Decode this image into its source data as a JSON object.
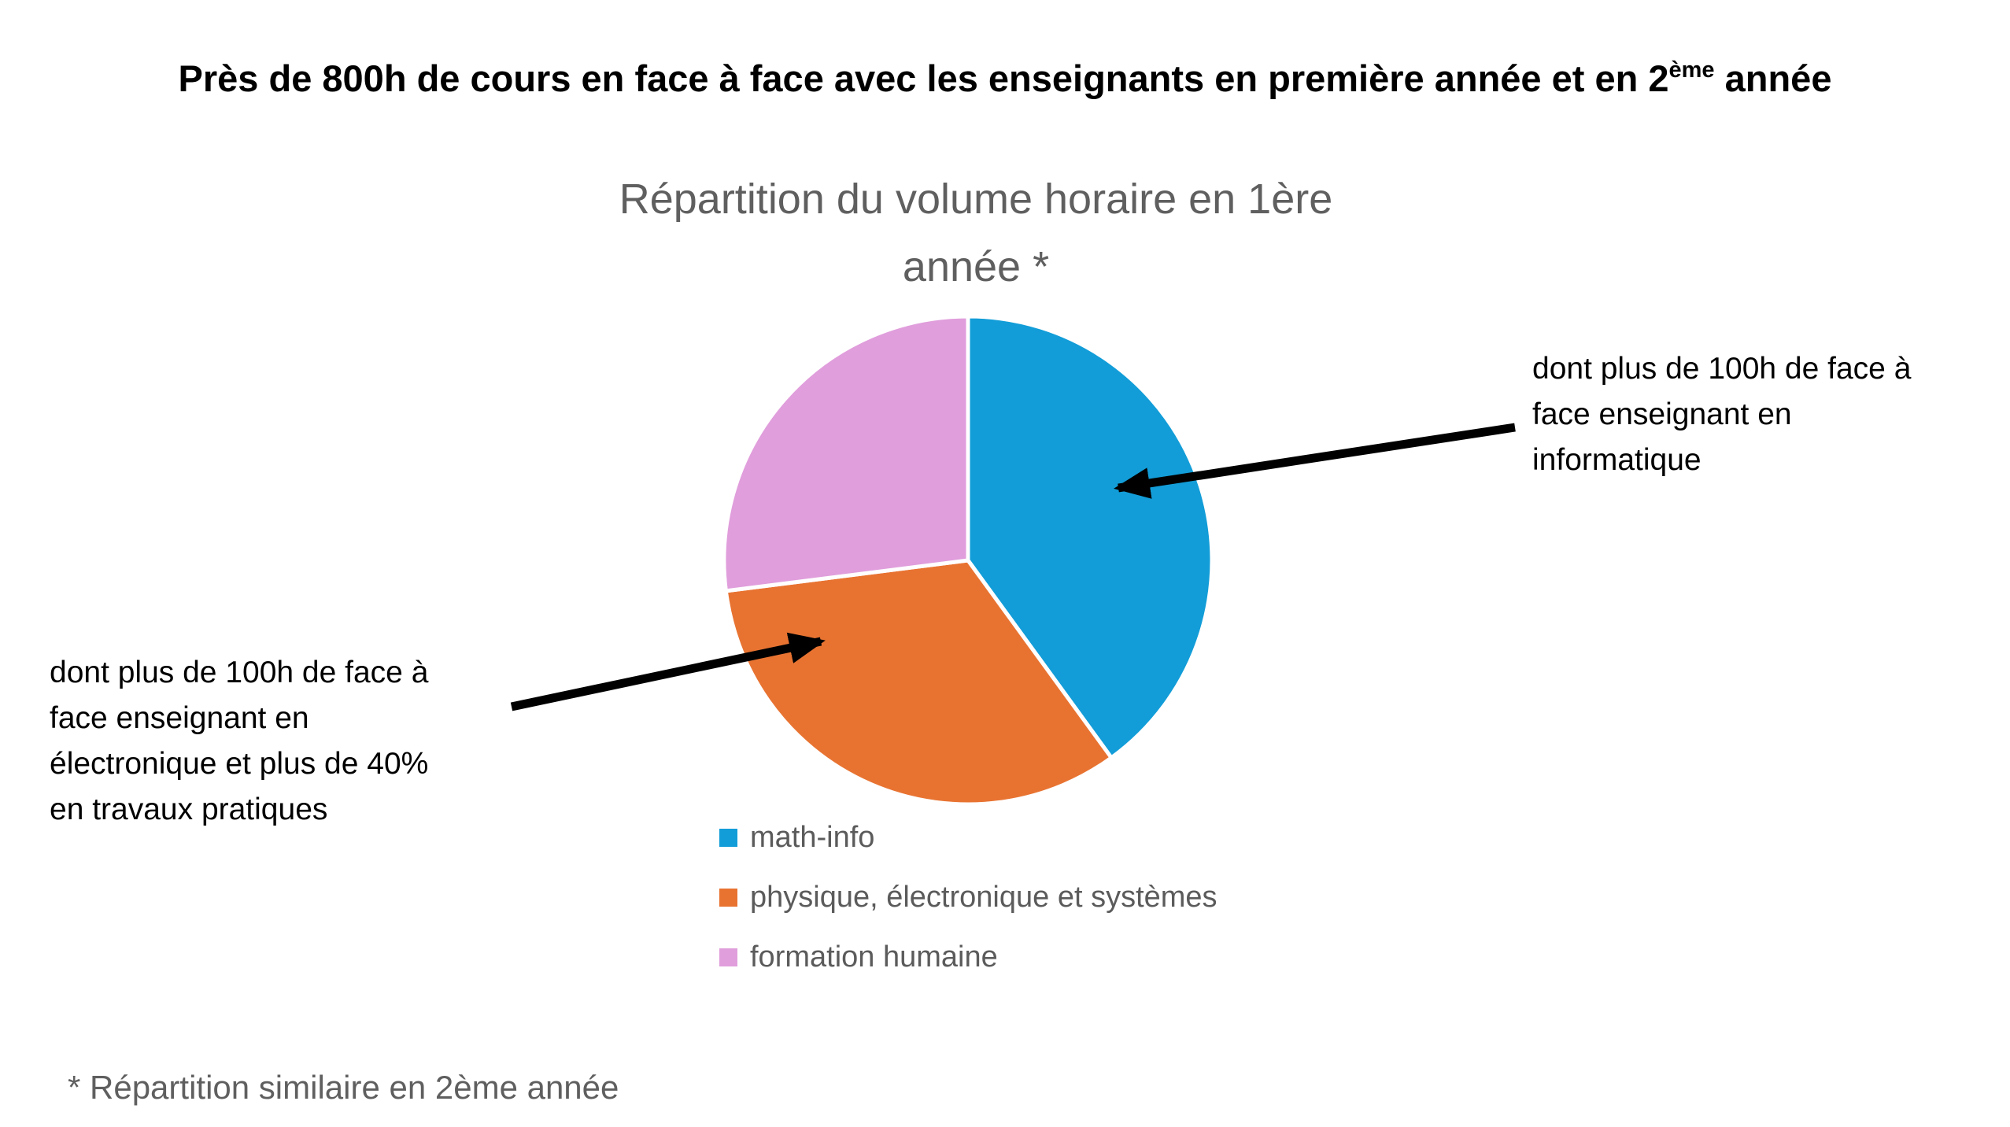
{
  "main_title": {
    "before_sup": "Près de 800h de cours en face à face avec les enseignants en première année et en 2",
    "sup": "ème",
    "after_sup": " année"
  },
  "chart_data": {
    "type": "pie",
    "title": "Répartition du volume horaire en 1ère année *",
    "title_lines": [
      "Répartition du volume horaire en 1ère",
      "année *"
    ],
    "labels": [
      "math-info",
      "physique, électronique et systèmes",
      "formation humaine"
    ],
    "values_pct_estimated": [
      40,
      33,
      27
    ],
    "colors": [
      "#129DD8",
      "#E87331",
      "#E09EDC"
    ],
    "start_angle_deg": 0,
    "clockwise": true,
    "legend_position": "bottom-left",
    "annotations": [
      {
        "side": "right",
        "target_slice": "math-info",
        "lines": [
          "dont plus de 100h de face à",
          "face enseignant en",
          "informatique"
        ]
      },
      {
        "side": "left",
        "target_slice": "physique, électronique et systèmes",
        "lines": [
          "dont plus de 100h de face à",
          "face enseignant en",
          "électronique et plus de 40%",
          "en travaux pratiques"
        ]
      }
    ]
  },
  "footnote": "* Répartition similaire en 2ème année",
  "colors": {
    "title_text": "#000000",
    "chart_gray_text": "#5F5F5F",
    "legend_text": "#5B5B5B",
    "arrow": "#000000",
    "background": "#FFFFFF"
  }
}
